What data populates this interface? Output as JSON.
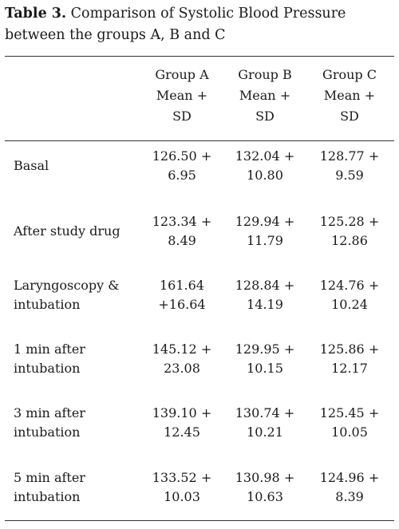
{
  "caption": {
    "label": "Table 3.",
    "text": " Comparison of Systolic Blood Pressure between the groups A, B and C"
  },
  "table": {
    "headers": [
      {
        "group": "Group A",
        "stat_line1": "Mean +",
        "stat_line2": "SD"
      },
      {
        "group": "Group B",
        "stat_line1": "Mean +",
        "stat_line2": "SD"
      },
      {
        "group": "Group C",
        "stat_line1": "Mean +",
        "stat_line2": "SD"
      }
    ],
    "rows": [
      {
        "label": [
          "Basal"
        ],
        "values": [
          [
            "126.50 +",
            "6.95"
          ],
          [
            "132.04 +",
            "10.80"
          ],
          [
            "128.77 +",
            "9.59"
          ]
        ]
      },
      {
        "label": [
          "After study drug"
        ],
        "values": [
          [
            "123.34 +",
            "8.49"
          ],
          [
            "129.94 +",
            "11.79"
          ],
          [
            "125.28 +",
            "12.86"
          ]
        ]
      },
      {
        "label": [
          "Laryngoscopy &",
          "intubation"
        ],
        "values": [
          [
            "161.64",
            "+16.64"
          ],
          [
            "128.84 +",
            "14.19"
          ],
          [
            "124.76 +",
            "10.24"
          ]
        ]
      },
      {
        "label": [
          "1 min after",
          "intubation"
        ],
        "values": [
          [
            "145.12 +",
            "23.08"
          ],
          [
            "129.95 +",
            "10.15"
          ],
          [
            "125.86 +",
            "12.17"
          ]
        ]
      },
      {
        "label": [
          "3 min after",
          "intubation"
        ],
        "values": [
          [
            "139.10 +",
            "12.45"
          ],
          [
            "130.74 +",
            "10.21"
          ],
          [
            "125.45 +",
            "10.05"
          ]
        ]
      },
      {
        "label": [
          "5 min after",
          "intubation"
        ],
        "values": [
          [
            "133.52 +",
            "10.03"
          ],
          [
            "130.98 +",
            "10.63"
          ],
          [
            "124.96 +",
            "8.39"
          ]
        ]
      }
    ]
  }
}
